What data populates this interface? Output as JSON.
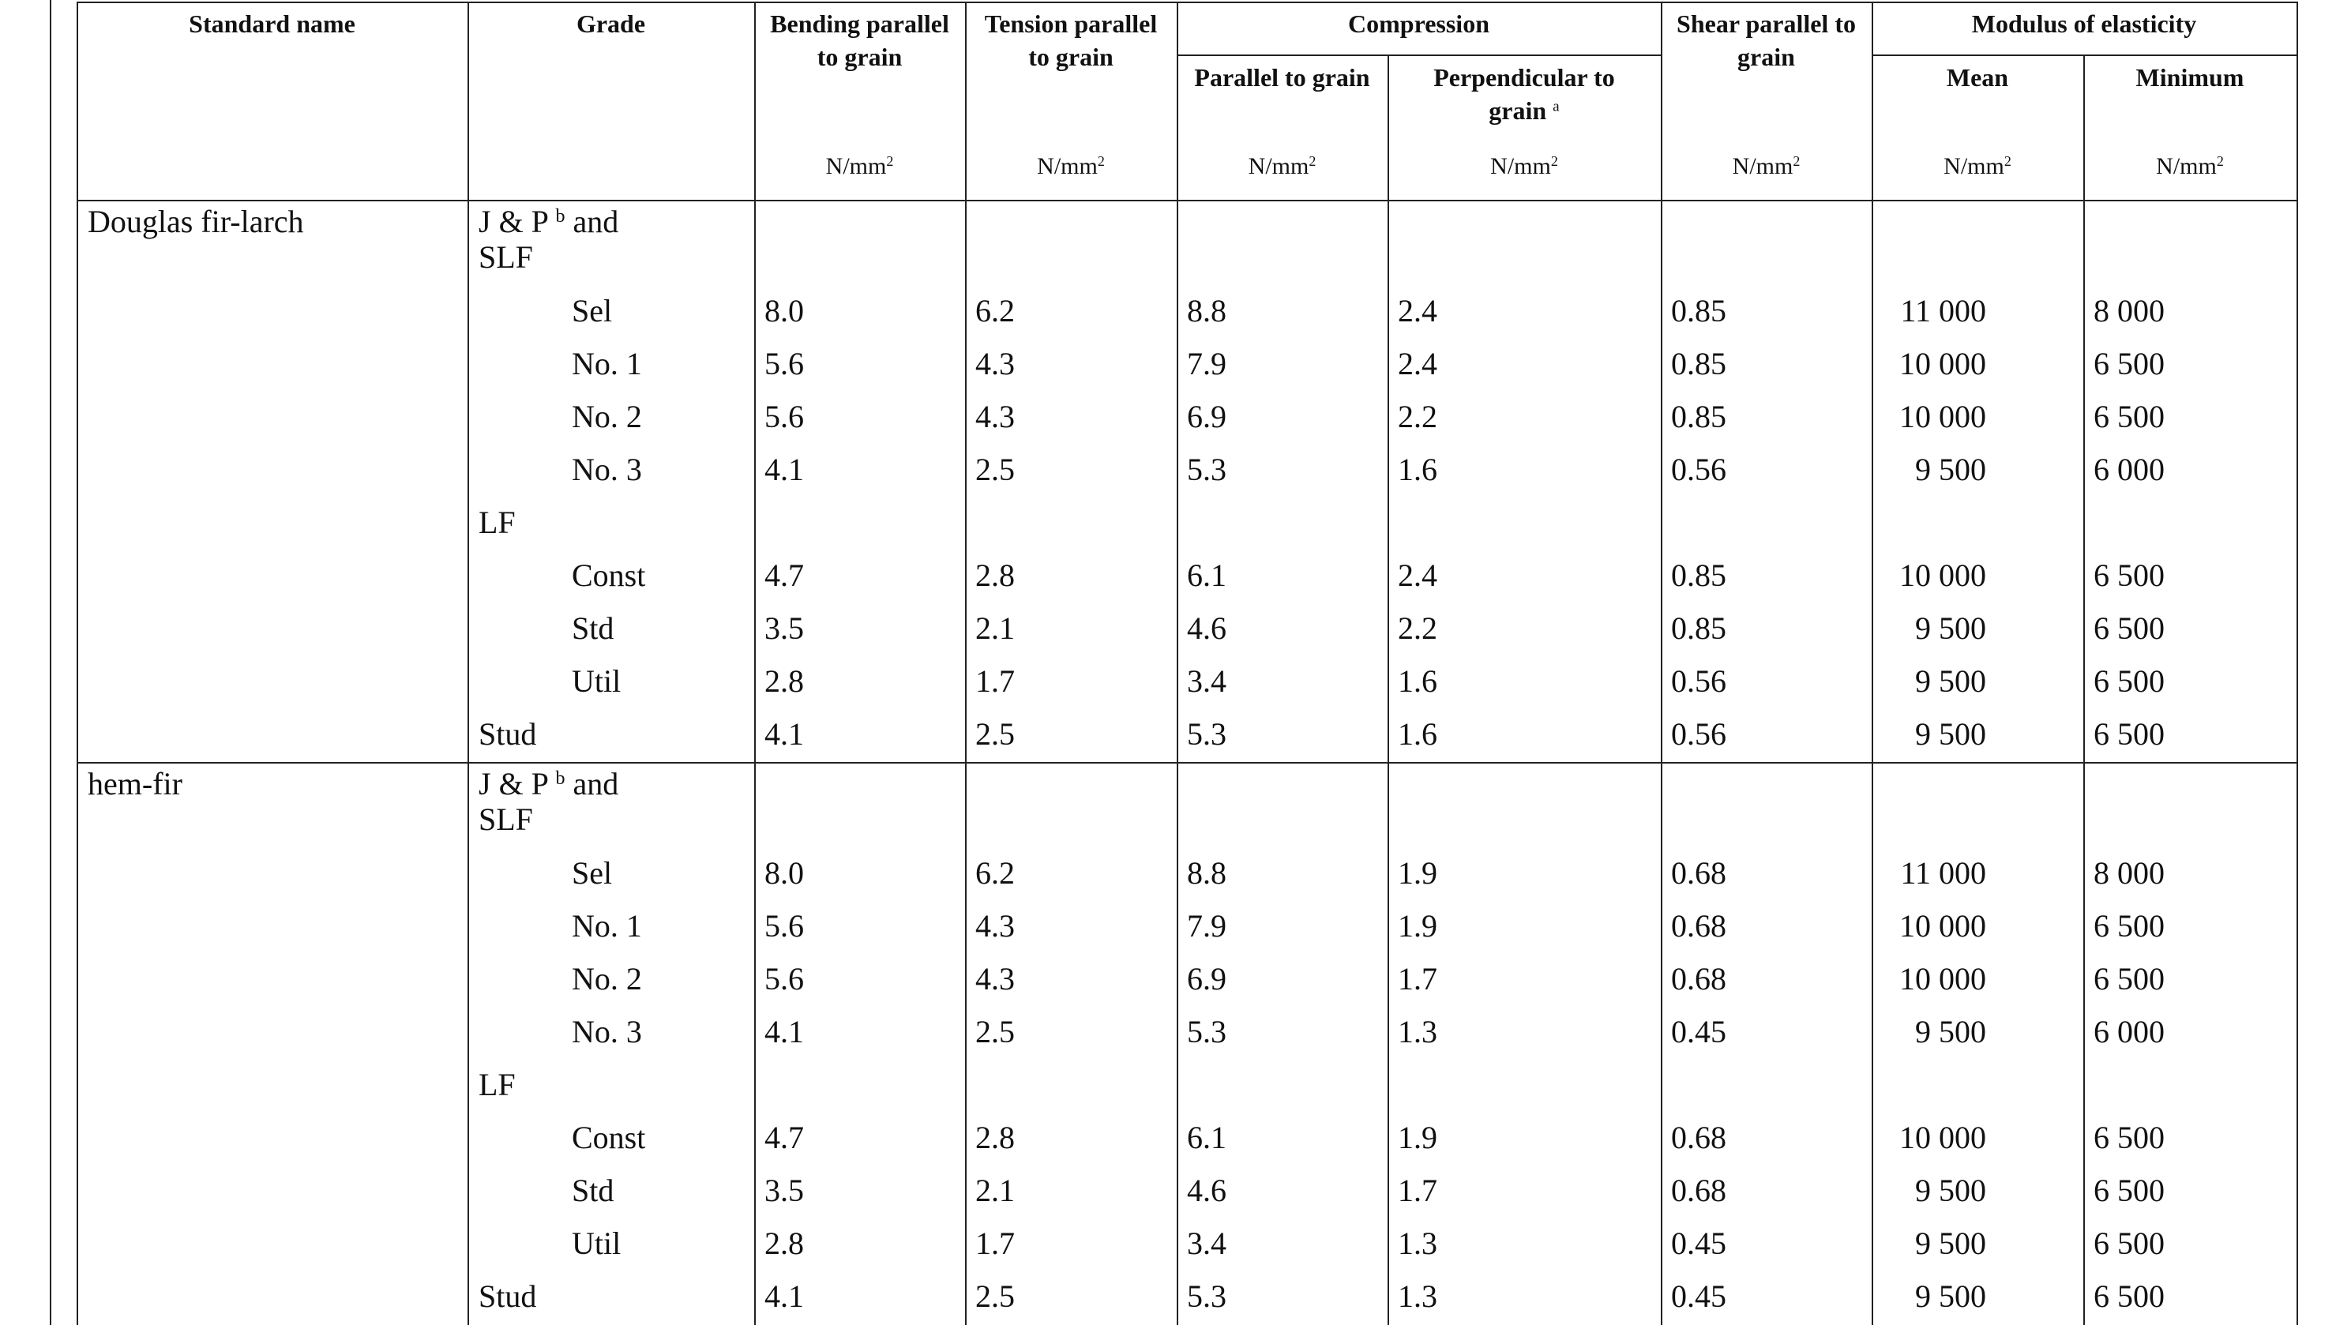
{
  "header": {
    "standard_name": "Standard name",
    "grade": "Grade",
    "bending": {
      "title": "Bending parallel to grain",
      "unit": "N/mm",
      "unit_exp": "2"
    },
    "tension": {
      "title": "Tension parallel to grain",
      "unit": "N/mm",
      "unit_exp": "2"
    },
    "compression": {
      "title": "Compression",
      "parallel": {
        "title": "Parallel to grain",
        "unit": "N/mm",
        "unit_exp": "2"
      },
      "perpendicular": {
        "title": "Perpendicular to grain",
        "note": "a",
        "unit": "N/mm",
        "unit_exp": "2"
      }
    },
    "shear": {
      "title": "Shear parallel to grain",
      "unit": "N/mm",
      "unit_exp": "2"
    },
    "modulus": {
      "title": "Modulus of elasticity",
      "mean": {
        "title": "Mean",
        "unit": "N/mm",
        "unit_exp": "2"
      },
      "minimum": {
        "title": "Minimum",
        "unit": "N/mm",
        "unit_exp": "2"
      }
    }
  },
  "groups": [
    {
      "name": "Douglas fir-larch",
      "grades": [
        {
          "label": "J & P",
          "note": "b",
          "label_end": "and SLF",
          "subgrades": [
            {
              "grade": "Sel",
              "values": [
                "8.0",
                "6.2",
                "8.8",
                "2.4",
                "0.85",
                "11 000",
                "8 000"
              ]
            },
            {
              "grade": "No. 1",
              "values": [
                "5.6",
                "4.3",
                "7.9",
                "2.4",
                "0.85",
                "10 000",
                "6 500"
              ]
            },
            {
              "grade": "No. 2",
              "values": [
                "5.6",
                "4.3",
                "6.9",
                "2.2",
                "0.85",
                "10 000",
                "6 500"
              ]
            },
            {
              "grade": "No. 3",
              "values": [
                "4.1",
                "2.5",
                "5.3",
                "1.6",
                "0.56",
                "9 500",
                "6 000"
              ]
            }
          ]
        },
        {
          "label": "LF",
          "subgrades": [
            {
              "grade": "Const",
              "values": [
                "4.7",
                "2.8",
                "6.1",
                "2.4",
                "0.85",
                "10 000",
                "6 500"
              ]
            },
            {
              "grade": "Std",
              "values": [
                "3.5",
                "2.1",
                "4.6",
                "2.2",
                "0.85",
                "9 500",
                "6 500"
              ]
            },
            {
              "grade": "Util",
              "values": [
                "2.8",
                "1.7",
                "3.4",
                "1.6",
                "0.56",
                "9 500",
                "6 500"
              ]
            }
          ]
        },
        {
          "label": "Stud",
          "values": [
            "4.1",
            "2.5",
            "5.3",
            "1.6",
            "0.56",
            "9 500",
            "6 500"
          ]
        }
      ]
    },
    {
      "name": "hem-fir",
      "grades": [
        {
          "label": "J & P",
          "note": "b",
          "label_end": "and SLF",
          "subgrades": [
            {
              "grade": "Sel",
              "values": [
                "8.0",
                "6.2",
                "8.8",
                "1.9",
                "0.68",
                "11 000",
                "8 000"
              ]
            },
            {
              "grade": "No. 1",
              "values": [
                "5.6",
                "4.3",
                "7.9",
                "1.9",
                "0.68",
                "10 000",
                "6 500"
              ]
            },
            {
              "grade": "No. 2",
              "values": [
                "5.6",
                "4.3",
                "6.9",
                "1.7",
                "0.68",
                "10 000",
                "6 500"
              ]
            },
            {
              "grade": "No. 3",
              "values": [
                "4.1",
                "2.5",
                "5.3",
                "1.3",
                "0.45",
                "9 500",
                "6 000"
              ]
            }
          ]
        },
        {
          "label": "LF",
          "subgrades": [
            {
              "grade": "Const",
              "values": [
                "4.7",
                "2.8",
                "6.1",
                "1.9",
                "0.68",
                "10 000",
                "6 500"
              ]
            },
            {
              "grade": "Std",
              "values": [
                "3.5",
                "2.1",
                "4.6",
                "1.7",
                "0.68",
                "9 500",
                "6 500"
              ]
            },
            {
              "grade": "Util",
              "values": [
                "2.8",
                "1.7",
                "3.4",
                "1.3",
                "0.45",
                "9 500",
                "6 500"
              ]
            }
          ]
        },
        {
          "label": "Stud",
          "values": [
            "4.1",
            "2.5",
            "5.3",
            "1.3",
            "0.45",
            "9 500",
            "6 500"
          ]
        }
      ]
    }
  ]
}
